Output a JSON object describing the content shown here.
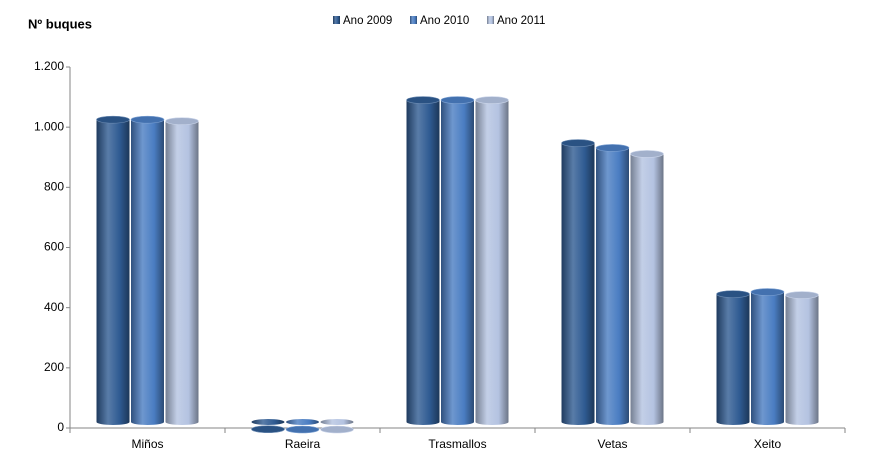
{
  "chart_data": {
    "type": "bar",
    "y_axis_title": "Nº buques",
    "categories": [
      "Miños",
      "Raeira",
      "Trasmallos",
      "Vetas",
      "Xeito"
    ],
    "series": [
      {
        "name": "Ano 2009",
        "color": "#2f5b92",
        "values": [
          1035,
          6,
          1100,
          957,
          455
        ]
      },
      {
        "name": "Ano 2010",
        "color": "#4a7dc2",
        "values": [
          1035,
          5,
          1100,
          941,
          462
        ]
      },
      {
        "name": "Ano 2011",
        "color": "#b4c3e1",
        "values": [
          1030,
          5,
          1100,
          921,
          452
        ]
      }
    ],
    "ylim": [
      0,
      1200
    ],
    "yticks": [
      0,
      200,
      400,
      600,
      800,
      {
        "value": 1000,
        "label": "1.000"
      },
      {
        "value": 1200,
        "label": "1.200"
      }
    ],
    "grid": false,
    "legend": "top"
  }
}
